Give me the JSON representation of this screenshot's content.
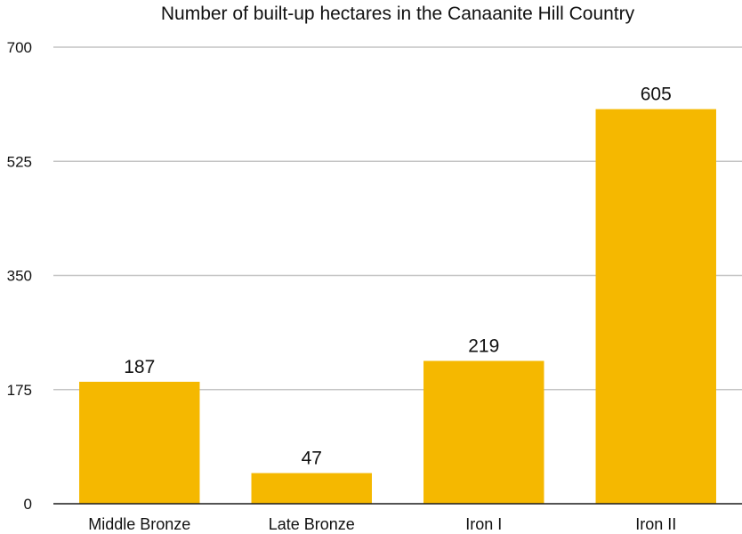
{
  "chart_data": {
    "type": "bar",
    "title": "Number of built-up hectares in the Canaanite Hill Country",
    "xlabel": "",
    "ylabel": "",
    "categories": [
      "Middle Bronze",
      "Late Bronze",
      "Iron I",
      "Iron II"
    ],
    "values": [
      187,
      47,
      219,
      605
    ],
    "data_labels": [
      "187",
      "47",
      "219",
      "605"
    ],
    "ylim": [
      0,
      700
    ],
    "yticks": [
      0,
      175,
      350,
      525,
      700
    ],
    "ytick_labels": [
      "0",
      "175",
      "350",
      "525",
      "700"
    ],
    "grid": true,
    "legend": "none",
    "bar_color": "#f5b800",
    "grid_color": "#c4c4c4",
    "axis_color": "#1a1a1a"
  }
}
